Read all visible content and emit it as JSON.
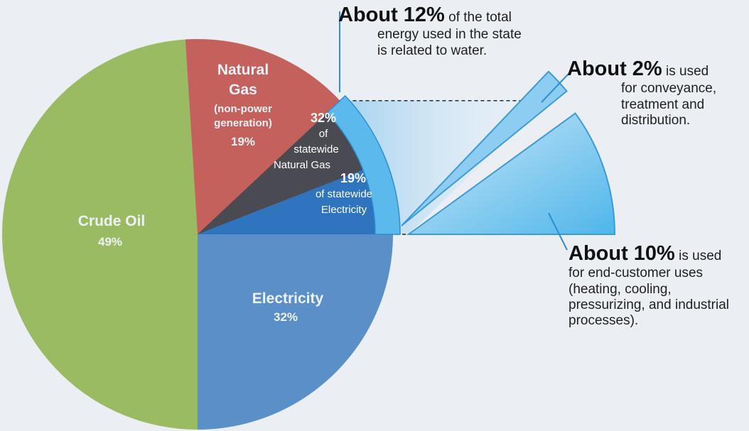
{
  "chart_data": {
    "type": "pie",
    "slices": [
      {
        "label": "Crude Oil",
        "sublabel": "",
        "value": 49,
        "value_label": "49%",
        "color": "#9bbb63"
      },
      {
        "label": "Natural Gas",
        "sublabel": "(non-power generation)",
        "value": 19,
        "value_label": "19%",
        "color": "#c4615c"
      },
      {
        "label": "Electricity",
        "sublabel": "",
        "value": 32,
        "value_label": "32%",
        "color": "#5b8fc7"
      }
    ],
    "inner_slices": [
      {
        "value_label": "32%",
        "text": [
          "of",
          "statewide",
          "Natural Gas"
        ],
        "color": "#4a4a52"
      },
      {
        "value_label": "19%",
        "text": [
          "of statewide",
          "Electricity"
        ],
        "color": "#2f74bf"
      }
    ],
    "water_share": 12,
    "water_breakdown": [
      {
        "value": 2,
        "lead": "About 2%",
        "rest": " is used",
        "lines": [
          "for conveyance,",
          "treatment and",
          "distribution."
        ]
      },
      {
        "value": 10,
        "lead": "About 10%",
        "rest": " is used",
        "lines": [
          "for end-customer uses",
          "(heating, cooling,",
          "pressurizing, and industrial",
          "processes)."
        ]
      }
    ],
    "headline": {
      "lead": "About 12%",
      "rest": " of the total",
      "lines": [
        "energy used in the state",
        "is related to water."
      ]
    }
  }
}
